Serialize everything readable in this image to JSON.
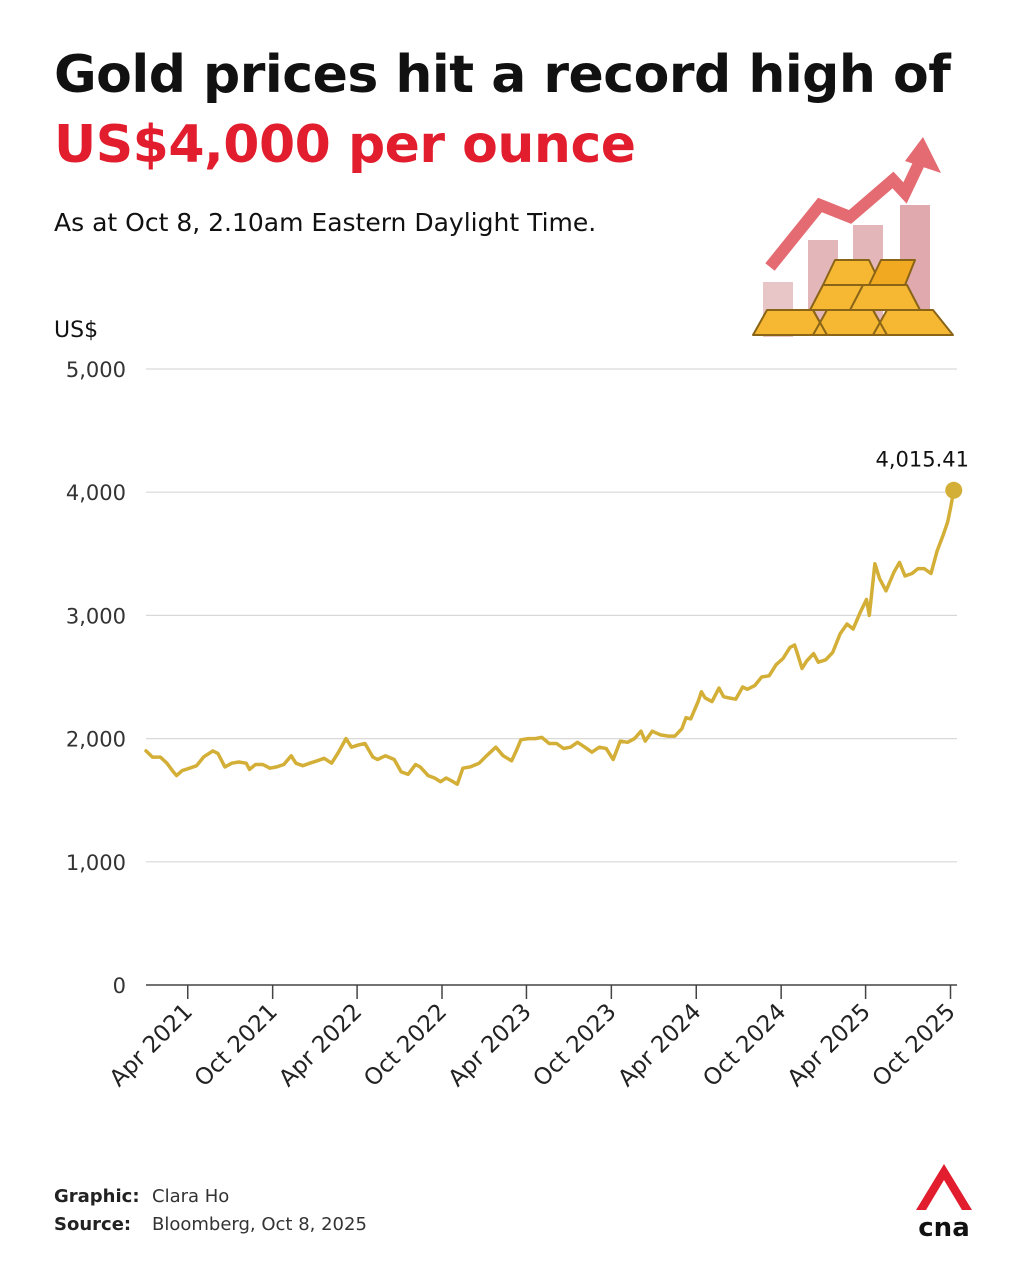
{
  "header": {
    "title_line1": "Gold prices hit a record high of",
    "title_line2": "US$4,000 per ounce",
    "subtitle": "As at Oct 8, 2.10am Eastern Daylight Time."
  },
  "colors": {
    "accent_red": "#e11d2e",
    "gold_line": "#d4af37",
    "gridline": "#d9d9d9",
    "axis": "#444444"
  },
  "illustration": {
    "icon": "gold-bars-rising-chart-icon"
  },
  "chart_data": {
    "type": "line",
    "title": "",
    "ylabel": "US$",
    "xlabel": "",
    "ylim": [
      0,
      5000
    ],
    "yticks": [
      0,
      1000,
      2000,
      3000,
      4000,
      5000
    ],
    "ytick_labels": [
      "0",
      "1,000",
      "2,000",
      "3,000",
      "4,000",
      "5,000"
    ],
    "xlim": [
      "2021-01-01",
      "2025-10-15"
    ],
    "xticks": [
      "2021-04-01",
      "2021-10-01",
      "2022-04-01",
      "2022-10-01",
      "2023-04-01",
      "2023-10-01",
      "2024-04-01",
      "2024-10-01",
      "2025-04-01",
      "2025-10-01"
    ],
    "xtick_labels": [
      "Apr 2021",
      "Oct 2021",
      "Apr 2022",
      "Oct 2022",
      "Apr 2023",
      "Oct 2023",
      "Apr 2024",
      "Oct 2024",
      "Apr 2025",
      "Oct 2025"
    ],
    "grid": true,
    "legend": "none",
    "series": [
      {
        "x": [
          "2021-01-01",
          "2021-01-15",
          "2021-02-01",
          "2021-02-15",
          "2021-03-01",
          "2021-03-08",
          "2021-03-20",
          "2021-04-05",
          "2021-04-20",
          "2021-05-05",
          "2021-05-25",
          "2021-06-05",
          "2021-06-20",
          "2021-07-05",
          "2021-07-20",
          "2021-08-05",
          "2021-08-12",
          "2021-08-25",
          "2021-09-10",
          "2021-09-25",
          "2021-10-10",
          "2021-10-25",
          "2021-11-10",
          "2021-11-20",
          "2021-12-05",
          "2021-12-20",
          "2022-01-05",
          "2022-01-20",
          "2022-02-05",
          "2022-02-20",
          "2022-03-08",
          "2022-03-20",
          "2022-04-05",
          "2022-04-18",
          "2022-05-05",
          "2022-05-15",
          "2022-06-01",
          "2022-06-20",
          "2022-07-05",
          "2022-07-20",
          "2022-08-05",
          "2022-08-15",
          "2022-09-01",
          "2022-09-15",
          "2022-09-28",
          "2022-10-10",
          "2022-10-25",
          "2022-11-03",
          "2022-11-15",
          "2022-12-01",
          "2022-12-20",
          "2023-01-05",
          "2023-01-25",
          "2023-02-10",
          "2023-02-28",
          "2023-03-10",
          "2023-03-20",
          "2023-04-05",
          "2023-04-20",
          "2023-05-04",
          "2023-05-20",
          "2023-06-05",
          "2023-06-20",
          "2023-07-05",
          "2023-07-20",
          "2023-08-05",
          "2023-08-20",
          "2023-09-05",
          "2023-09-20",
          "2023-10-05",
          "2023-10-20",
          "2023-11-05",
          "2023-11-20",
          "2023-12-04",
          "2023-12-13",
          "2023-12-28",
          "2024-01-15",
          "2024-02-01",
          "2024-02-15",
          "2024-03-01",
          "2024-03-10",
          "2024-03-20",
          "2024-04-05",
          "2024-04-12",
          "2024-04-20",
          "2024-05-05",
          "2024-05-20",
          "2024-05-30",
          "2024-06-10",
          "2024-06-25",
          "2024-07-10",
          "2024-07-20",
          "2024-08-05",
          "2024-08-20",
          "2024-09-05",
          "2024-09-20",
          "2024-10-05",
          "2024-10-20",
          "2024-10-30",
          "2024-11-05",
          "2024-11-15",
          "2024-11-25",
          "2024-12-10",
          "2024-12-20",
          "2025-01-05",
          "2025-01-20",
          "2025-02-05",
          "2025-02-20",
          "2025-03-05",
          "2025-03-20",
          "2025-04-03",
          "2025-04-09",
          "2025-04-21",
          "2025-05-01",
          "2025-05-15",
          "2025-06-01",
          "2025-06-13",
          "2025-06-25",
          "2025-07-10",
          "2025-07-23",
          "2025-08-05",
          "2025-08-20",
          "2025-09-02",
          "2025-09-15",
          "2025-09-25",
          "2025-10-01",
          "2025-10-08"
        ],
        "y": [
          1900,
          1850,
          1850,
          1800,
          1730,
          1700,
          1740,
          1760,
          1780,
          1850,
          1900,
          1880,
          1770,
          1800,
          1810,
          1800,
          1750,
          1790,
          1790,
          1760,
          1770,
          1790,
          1860,
          1800,
          1780,
          1800,
          1820,
          1840,
          1800,
          1890,
          2000,
          1930,
          1950,
          1960,
          1850,
          1830,
          1860,
          1830,
          1730,
          1710,
          1790,
          1770,
          1700,
          1680,
          1650,
          1680,
          1650,
          1630,
          1760,
          1770,
          1800,
          1860,
          1930,
          1860,
          1820,
          1900,
          1990,
          2000,
          2000,
          2010,
          1960,
          1960,
          1920,
          1930,
          1970,
          1930,
          1890,
          1930,
          1920,
          1830,
          1980,
          1970,
          2000,
          2060,
          1980,
          2060,
          2030,
          2020,
          2020,
          2080,
          2170,
          2160,
          2300,
          2380,
          2330,
          2300,
          2410,
          2340,
          2330,
          2320,
          2420,
          2400,
          2430,
          2500,
          2510,
          2600,
          2650,
          2740,
          2760,
          2690,
          2570,
          2630,
          2690,
          2620,
          2640,
          2700,
          2850,
          2930,
          2890,
          3020,
          3130,
          3000,
          3420,
          3300,
          3200,
          3350,
          3430,
          3320,
          3340,
          3380,
          3380,
          3340,
          3520,
          3650,
          3760,
          3870,
          4015.41
        ]
      }
    ],
    "annotations": [
      {
        "x": "2025-10-08",
        "y": 4015.41,
        "label": "4,015.41"
      }
    ]
  },
  "footer": {
    "graphic_label": "Graphic:",
    "graphic_value": "Clara Ho",
    "source_label": "Source:",
    "source_value": "Bloomberg, Oct 8, 2025"
  },
  "logo": {
    "text": "cna",
    "icon": "cna-logo-icon"
  }
}
